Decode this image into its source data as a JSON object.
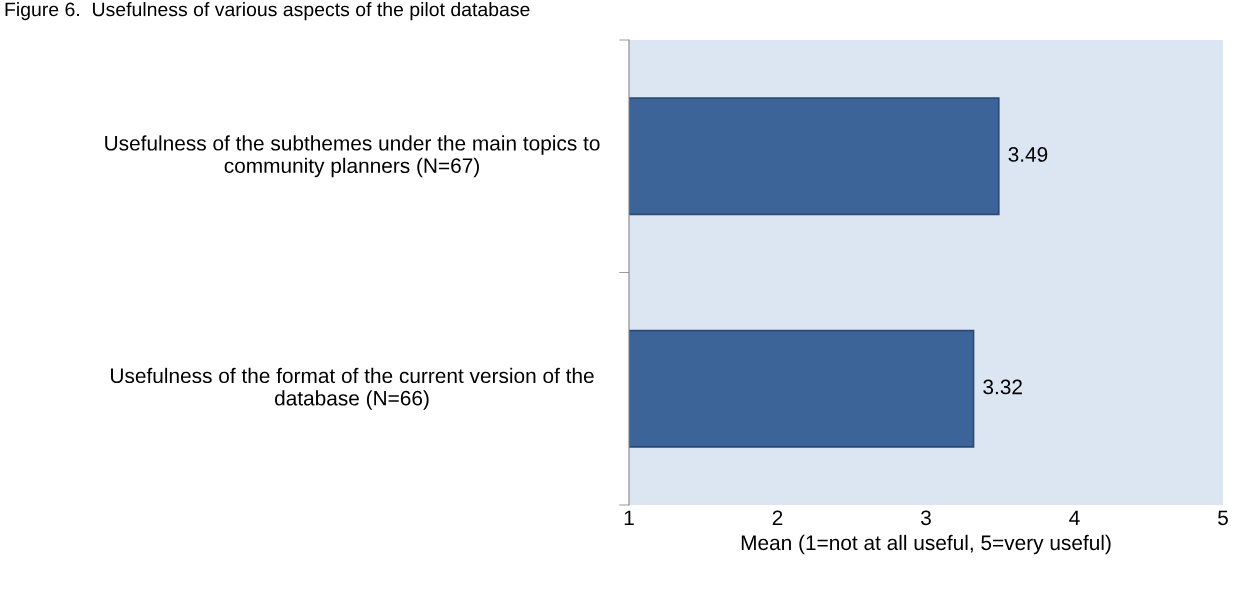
{
  "chart_data": {
    "type": "bar",
    "orientation": "horizontal",
    "title": "Figure 6.  Usefulness of various aspects of the pilot database",
    "categories": [
      "Usefulness of the subthemes under the main topics to community planners (N=67)",
      "Usefulness of the format of the current version of the database (N=66)"
    ],
    "values": [
      3.49,
      3.32
    ],
    "color": "#3d6499",
    "xlim": [
      1,
      5
    ],
    "xticks": [
      1,
      2,
      3,
      4,
      5
    ],
    "xlabel": "Mean (1=not at all useful, 5=very useful)",
    "data_labels": true,
    "grid": false,
    "legend": false
  }
}
